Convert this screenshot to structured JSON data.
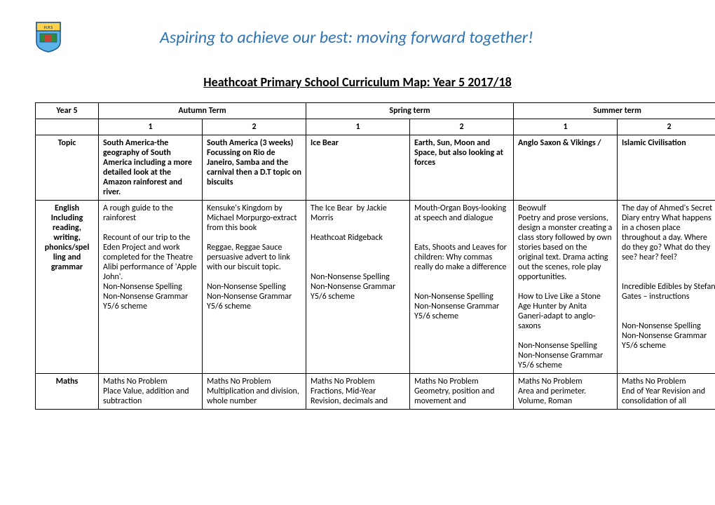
{
  "header": {
    "motto": "Aspiring to achieve our best: moving forward together!",
    "logo_initials": "H.P.S"
  },
  "page_title": "Heathcoat Primary School Curriculum Map: Year 5  2017/18",
  "terms": {
    "year_label": "Year 5",
    "autumn": "Autumn Term",
    "spring": "Spring term",
    "summer": "Summer term",
    "sub1": "1",
    "sub2": "2"
  },
  "rows": [
    {
      "label": "Topic",
      "bold": true,
      "cells": [
        "South America-the geography of South America including a more detailed look at the Amazon rainforest and river.",
        "South America (3 weeks) Focussing on Rio de Janeiro, Samba and the carnival then a D.T topic on biscuits",
        "Ice Bear",
        "Earth, Sun, Moon and Space, but also looking at forces",
        "Anglo Saxon & Vikings /",
        "Islamic Civilisation"
      ]
    },
    {
      "label": "English\nIncluding\nreading,\nwriting,\nphonics/spel\nling and\ngrammar",
      "bold": false,
      "cells": [
        "A rough guide to the rainforest\n\nRecount of our trip to the Eden Project and work completed for the Theatre Alibi performance of 'Apple John'.\nNon-Nonsense Spelling\nNon-Nonsense Grammar\nY5/6 scheme",
        "Kensuke's Kingdom by Michael Morpurgo-extract from this book\n\nReggae, Reggae Sauce persuasive advert to link with our biscuit topic.\n\nNon-Nonsense Spelling\nNon-Nonsense Grammar\nY5/6 scheme",
        "The Ice Bear  by Jackie Morris\n\nHeathcoat Ridgeback\n\n\n\nNon-Nonsense Spelling\nNon-Nonsense Grammar\nY5/6 scheme",
        "Mouth-Organ Boys-looking at speech and dialogue\n\n\nEats, Shoots and Leaves for children: Why commas really do make a difference\n\n\nNon-Nonsense Spelling\nNon-Nonsense Grammar\nY5/6 scheme",
        "Beowulf\nPoetry and prose versions, design a monster creating a class story followed by own stories based on the original text. Drama acting out the scenes, role play opportunities.\n\nHow to Live Like a Stone Age Hunter by Anita Ganeri-adapt to anglo-saxons\n\nNon-Nonsense Spelling\nNon-Nonsense Grammar\nY5/6 scheme",
        "The day of Ahmed's Secret\nDiary entry What happens in a chosen place throughout a day. Where do they go? What do they see? hear? feel?\n\n\nIncredible Edibles by Stefan Gates – instructions\n\n\nNon-Nonsense Spelling\nNon-Nonsense Grammar\nY5/6 scheme"
      ]
    },
    {
      "label": "Maths",
      "bold": false,
      "cells": [
        "Maths No Problem\nPlace Value, addition and subtraction",
        "Maths No Problem\nMultiplication and division, whole number",
        "Maths No Problem\nFractions, Mid-Year Revision, decimals and",
        "Maths No Problem\nGeometry, position and movement and",
        "Maths No Problem\nArea and perimeter. Volume, Roman",
        "Maths No Problem\nEnd of Year Revision and consolidation of all"
      ]
    }
  ]
}
